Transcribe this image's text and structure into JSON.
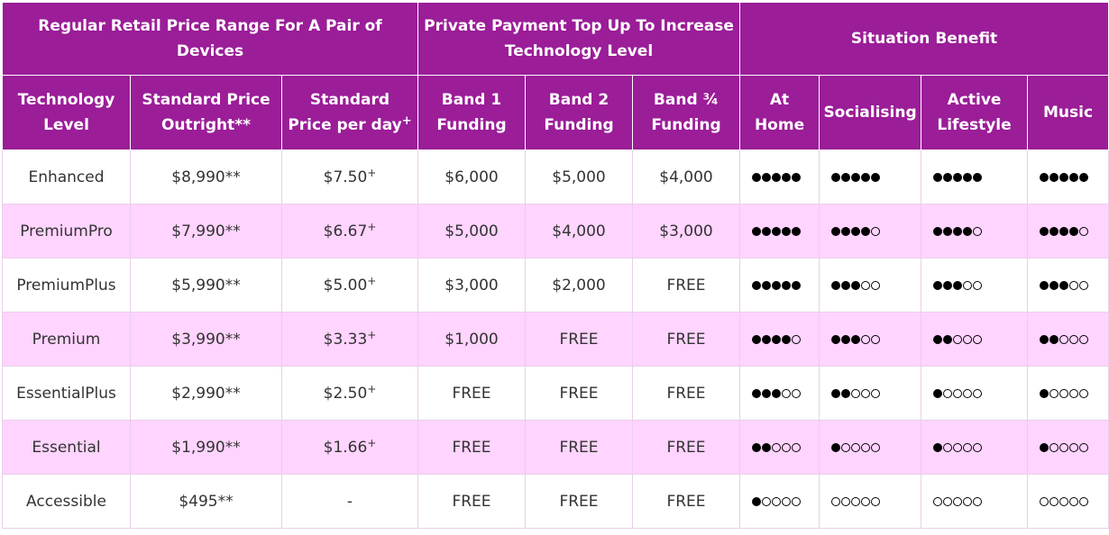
{
  "header": {
    "groups": [
      "Regular Retail Price Range For A Pair of Devices",
      "Private Payment Top Up To Increase Technology Level",
      "Situation Benefit"
    ],
    "columns": {
      "tech_level": "Technology Level",
      "outright": "Standard Price Outright**",
      "per_day": "Standard Price per day",
      "per_day_sup": "+",
      "band1": "Band 1 Funding",
      "band2": "Band 2 Funding",
      "band34": "Band ¾ Funding",
      "at_home": "At Home",
      "socialising": "Socialising",
      "active": "Active Lifestyle",
      "music": "Music"
    }
  },
  "rows": [
    {
      "level": "Enhanced",
      "outright": "$8,990**",
      "per_day": "$7.50",
      "per_day_sup": "+",
      "band1": "$6,000",
      "band2": "$5,000",
      "band34": "$4,000",
      "ratings": [
        5,
        5,
        5,
        5
      ]
    },
    {
      "level": "PremiumPro",
      "outright": "$7,990**",
      "per_day": "$6.67",
      "per_day_sup": "+",
      "band1": "$5,000",
      "band2": "$4,000",
      "band34": "$3,000",
      "ratings": [
        5,
        4,
        4,
        4
      ]
    },
    {
      "level": "PremiumPlus",
      "outright": "$5,990**",
      "per_day": "$5.00",
      "per_day_sup": "+",
      "band1": "$3,000",
      "band2": "$2,000",
      "band34": "FREE",
      "ratings": [
        5,
        3,
        3,
        3
      ]
    },
    {
      "level": "Premium",
      "outright": "$3,990**",
      "per_day": "$3.33",
      "per_day_sup": "+",
      "band1": "$1,000",
      "band2": "FREE",
      "band34": "FREE",
      "ratings": [
        4,
        3,
        2,
        2
      ]
    },
    {
      "level": "EssentialPlus",
      "outright": "$2,990**",
      "per_day": "$2.50",
      "per_day_sup": "+",
      "band1": "FREE",
      "band2": "FREE",
      "band34": "FREE",
      "ratings": [
        3,
        2,
        1,
        1
      ]
    },
    {
      "level": "Essential",
      "outright": "$1,990**",
      "per_day": "$1.66",
      "per_day_sup": "+",
      "band1": "FREE",
      "band2": "FREE",
      "band34": "FREE",
      "ratings": [
        2,
        1,
        1,
        1
      ]
    },
    {
      "level": "Accessible",
      "outright": "$495**",
      "per_day": "-",
      "per_day_sup": "",
      "band1": "FREE",
      "band2": "FREE",
      "band34": "FREE",
      "ratings": [
        1,
        0,
        0,
        0
      ]
    }
  ],
  "rating_max": 5,
  "colors": {
    "header_bg": "#9b1d98",
    "row_alt_bg": "#ffd4ff",
    "row_bg": "#ffffff",
    "dot": "#000000"
  }
}
